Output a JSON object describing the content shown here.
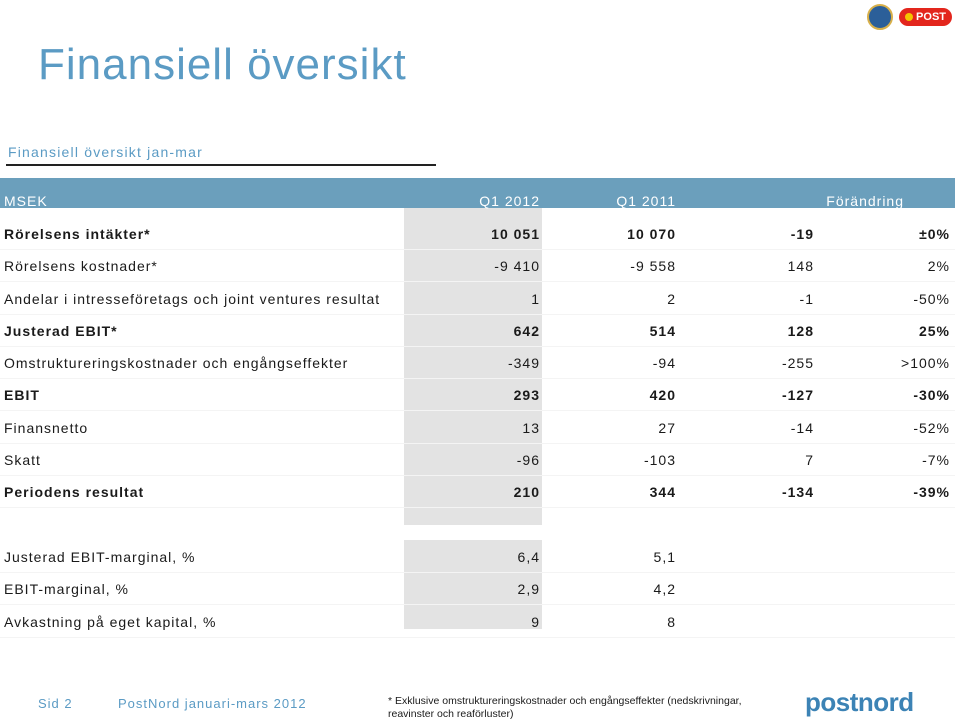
{
  "page": {
    "title": "Finansiell översikt",
    "subtitle": "Finansiell översikt jan-mar"
  },
  "logos": {
    "post_brand": "POST"
  },
  "table": {
    "headers": {
      "unit": "MSEK",
      "q1_2012": "Q1 2012",
      "q1_2011": "Q1 2011",
      "change": "Förändring"
    },
    "rows": [
      {
        "label": "Rörelsens intäkter*",
        "q1_2012": "10 051",
        "q1_2011": "10 070",
        "change_abs": "-19",
        "change_pct": "±0%",
        "bold": true
      },
      {
        "label": "Rörelsens kostnader*",
        "q1_2012": "-9 410",
        "q1_2011": "-9 558",
        "change_abs": "148",
        "change_pct": "2%",
        "bold": false
      },
      {
        "label": "Andelar i intresseföretags och joint ventures resultat",
        "q1_2012": "1",
        "q1_2011": "2",
        "change_abs": "-1",
        "change_pct": "-50%",
        "bold": false
      },
      {
        "label": "Justerad EBIT*",
        "q1_2012": "642",
        "q1_2011": "514",
        "change_abs": "128",
        "change_pct": "25%",
        "bold": true
      },
      {
        "label": "Omstruktureringskostnader och engångseffekter",
        "q1_2012": "-349",
        "q1_2011": "-94",
        "change_abs": "-255",
        "change_pct": ">100%",
        "bold": false
      },
      {
        "label": "EBIT",
        "q1_2012": "293",
        "q1_2011": "420",
        "change_abs": "-127",
        "change_pct": "-30%",
        "bold": true
      },
      {
        "label": "Finansnetto",
        "q1_2012": "13",
        "q1_2011": "27",
        "change_abs": "-14",
        "change_pct": "-52%",
        "bold": false
      },
      {
        "label": "Skatt",
        "q1_2012": "-96",
        "q1_2011": "-103",
        "change_abs": "7",
        "change_pct": "-7%",
        "bold": false
      },
      {
        "label": "Periodens resultat",
        "q1_2012": "210",
        "q1_2011": "344",
        "change_abs": "-134",
        "change_pct": "-39%",
        "bold": true
      }
    ],
    "ratios": [
      {
        "label": "Justerad EBIT-marginal, %",
        "q1_2012": "6,4",
        "q1_2011": "5,1"
      },
      {
        "label": "EBIT-marginal, %",
        "q1_2012": "2,9",
        "q1_2011": "4,2"
      },
      {
        "label": "Avkastning på eget kapital, %",
        "q1_2012": "9",
        "q1_2011": "8"
      }
    ]
  },
  "footer": {
    "page": "Sid 2",
    "report": "PostNord januari-mars 2012",
    "footnote": "* Exklusive omstruktureringskostnader och engångseffekter (nedskrivningar, reavinster och reaförluster)",
    "brand": "postnord"
  }
}
